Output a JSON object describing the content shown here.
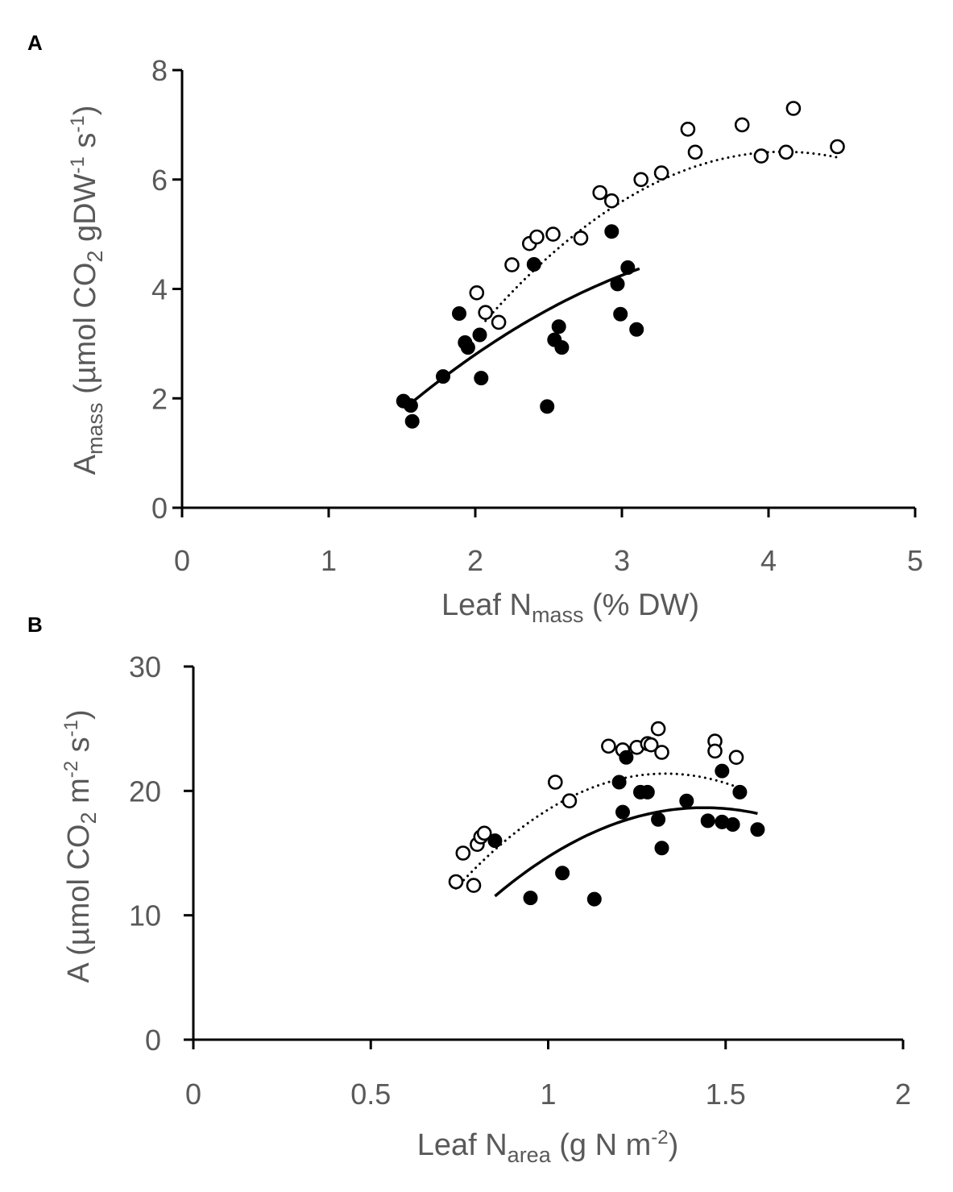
{
  "chart_data": [
    {
      "type": "scatter",
      "panel_label": "A",
      "ylabel": {
        "main": "A",
        "sub": "mass",
        "text": " (µmol CO",
        "sub2": "2",
        "text2": " gDW",
        "sup1": "-1",
        "text3": " s",
        "sup2": "-1",
        "text4": ")"
      },
      "xlabel": {
        "main": "Leaf N",
        "sub": "mass",
        "text": " (% DW)"
      },
      "xlim": [
        0,
        5
      ],
      "ylim": [
        0,
        8
      ],
      "xticks": [
        "0",
        "1",
        "2",
        "3",
        "4",
        "5"
      ],
      "yticks": [
        "0",
        "2",
        "4",
        "6",
        "8"
      ],
      "series": [
        {
          "name": "open",
          "marker": "open-circle",
          "fit": "dotted",
          "points": [
            [
              2.01,
              3.93
            ],
            [
              2.07,
              3.57
            ],
            [
              2.16,
              3.39
            ],
            [
              2.25,
              4.44
            ],
            [
              2.37,
              4.83
            ],
            [
              2.42,
              4.95
            ],
            [
              2.53,
              5.0
            ],
            [
              2.72,
              4.93
            ],
            [
              2.85,
              5.76
            ],
            [
              2.93,
              5.61
            ],
            [
              3.13,
              6.0
            ],
            [
              3.27,
              6.12
            ],
            [
              3.45,
              6.92
            ],
            [
              3.5,
              6.5
            ],
            [
              3.82,
              7.0
            ],
            [
              3.95,
              6.43
            ],
            [
              4.12,
              6.5
            ],
            [
              4.17,
              7.3
            ],
            [
              4.47,
              6.6
            ]
          ],
          "fit_curve": {
            "x_range": [
              2.07,
              4.48
            ],
            "coef": [
              -6.1,
              6.15,
              -0.75
            ]
          }
        },
        {
          "name": "filled",
          "marker": "filled-circle",
          "fit": "solid",
          "points": [
            [
              1.51,
              1.95
            ],
            [
              1.56,
              1.87
            ],
            [
              1.57,
              1.58
            ],
            [
              1.78,
              2.4
            ],
            [
              1.89,
              3.55
            ],
            [
              1.93,
              3.02
            ],
            [
              1.95,
              2.93
            ],
            [
              2.03,
              3.16
            ],
            [
              2.04,
              2.37
            ],
            [
              2.4,
              4.45
            ],
            [
              2.49,
              1.85
            ],
            [
              2.54,
              3.07
            ],
            [
              2.57,
              3.31
            ],
            [
              2.59,
              2.93
            ],
            [
              2.93,
              5.05
            ],
            [
              2.97,
              4.09
            ],
            [
              2.99,
              3.54
            ],
            [
              3.04,
              4.39
            ],
            [
              3.1,
              3.26
            ]
          ],
          "fit_curve": {
            "x_range": [
              1.52,
              3.12
            ],
            "coef": [
              -2.5,
              3.45,
              -0.4
            ]
          }
        }
      ]
    },
    {
      "type": "scatter",
      "panel_label": "B",
      "ylabel": {
        "main": "A",
        "text": " (µmol CO",
        "sub2": "2",
        "text2": " m",
        "sup1": "-2",
        "text3": " s",
        "sup2": "-1",
        "text4": ")"
      },
      "xlabel": {
        "main": "Leaf N",
        "sub": "area",
        "text": " (g N m",
        "sup": "-2",
        "text2": ")"
      },
      "xlim": [
        0,
        2
      ],
      "ylim": [
        0,
        30
      ],
      "xticks": [
        "0",
        "0.5",
        "1",
        "1.5",
        "2"
      ],
      "yticks": [
        "0",
        "10",
        "20",
        "30"
      ],
      "series": [
        {
          "name": "open",
          "marker": "open-circle",
          "fit": "dotted",
          "points": [
            [
              0.74,
              12.7
            ],
            [
              0.76,
              15.0
            ],
            [
              0.79,
              12.4
            ],
            [
              0.8,
              15.7
            ],
            [
              0.81,
              16.3
            ],
            [
              0.82,
              16.6
            ],
            [
              1.02,
              20.7
            ],
            [
              1.06,
              19.2
            ],
            [
              1.17,
              23.6
            ],
            [
              1.21,
              23.3
            ],
            [
              1.25,
              23.5
            ],
            [
              1.28,
              23.8
            ],
            [
              1.29,
              23.7
            ],
            [
              1.31,
              25.0
            ],
            [
              1.32,
              23.1
            ],
            [
              1.47,
              24.0
            ],
            [
              1.47,
              23.2
            ],
            [
              1.53,
              22.7
            ]
          ],
          "fit_curve": {
            "x_range": [
              0.74,
              1.53
            ],
            "coef": [
              -25.5,
              70.5,
              -26.5
            ]
          }
        },
        {
          "name": "filled",
          "marker": "filled-circle",
          "fit": "solid",
          "points": [
            [
              0.85,
              16.0
            ],
            [
              0.95,
              11.4
            ],
            [
              1.04,
              13.4
            ],
            [
              1.13,
              11.3
            ],
            [
              1.2,
              20.7
            ],
            [
              1.21,
              18.3
            ],
            [
              1.22,
              22.7
            ],
            [
              1.26,
              19.9
            ],
            [
              1.28,
              19.9
            ],
            [
              1.31,
              17.7
            ],
            [
              1.32,
              15.4
            ],
            [
              1.39,
              19.2
            ],
            [
              1.45,
              17.6
            ],
            [
              1.49,
              21.6
            ],
            [
              1.49,
              17.5
            ],
            [
              1.52,
              17.3
            ],
            [
              1.54,
              19.9
            ],
            [
              1.59,
              16.9
            ]
          ],
          "fit_curve": {
            "x_range": [
              0.85,
              1.59
            ],
            "coef": [
              -23.8,
              59.0,
              -20.5
            ]
          }
        }
      ]
    }
  ]
}
